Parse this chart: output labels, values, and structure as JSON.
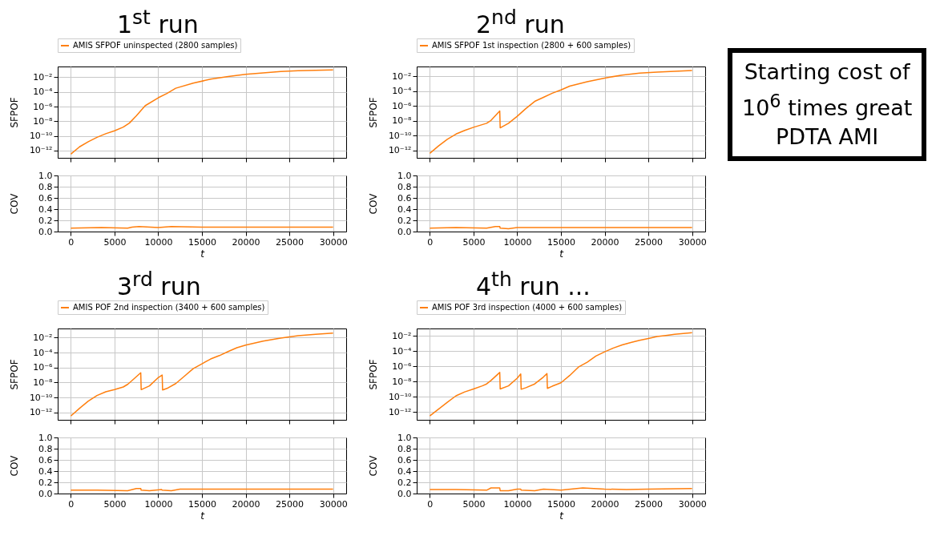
{
  "chart_data": [
    {
      "type": "line",
      "annotations": [
        "1$^{st}$ run"
      ],
      "ylabel": "SFPOF",
      "log": true,
      "grid": true,
      "legend": "top",
      "tick_labels": "y",
      "xlim": [
        -1500,
        31500
      ],
      "xticks": [
        0,
        5000,
        10000,
        15000,
        20000,
        25000,
        30000
      ],
      "ylim": [
        1e-13,
        0.3
      ],
      "yticks": [
        {
          "value": 1e-12,
          "label": "10⁻¹²"
        },
        {
          "value": 1e-10,
          "label": "10⁻¹⁰"
        },
        {
          "value": 1e-08,
          "label": "10⁻⁸"
        },
        {
          "value": 1e-06,
          "label": "10⁻⁶"
        },
        {
          "value": 0.0001,
          "label": "10⁻⁴"
        },
        {
          "value": 0.01,
          "label": "10⁻²"
        }
      ],
      "series": [
        {
          "name": "AMIS SFPOF uninspected (2800 samples)",
          "color": "#ff7f0e",
          "x": [
            0,
            1000,
            2000,
            3000,
            4000,
            5000,
            6000,
            6700,
            7500,
            8500,
            10000,
            11000,
            12000,
            14000,
            16000,
            18000,
            20000,
            22000,
            24000,
            26000,
            28000,
            30000
          ],
          "values": [
            3.2e-13,
            3.2e-12,
            1.6e-11,
            6.3e-11,
            2e-10,
            5e-10,
            1.6e-09,
            5.6e-09,
            5.6e-08,
            1.3e-06,
            1.6e-05,
            6.3e-05,
            0.00032,
            0.0016,
            0.0056,
            0.013,
            0.025,
            0.04,
            0.063,
            0.079,
            0.089,
            0.1
          ]
        }
      ]
    },
    {
      "type": "line",
      "ylabel": "COV",
      "xlabel": "t",
      "grid": true,
      "xlim": [
        -1500,
        31500
      ],
      "xticks": [
        0,
        5000,
        10000,
        15000,
        20000,
        25000,
        30000
      ],
      "ylim": [
        0,
        1
      ],
      "yticks": [
        {
          "value": 0,
          "label": "0.0"
        },
        0.2,
        0.4,
        0.6,
        0.8,
        {
          "value": 1,
          "label": "1.0"
        }
      ],
      "series": [
        {
          "color": "#ff7f0e",
          "x": [
            0,
            3500,
            6500,
            7000,
            7800,
            10000,
            11500,
            15000,
            20000,
            25000,
            30000
          ],
          "values": [
            0.06,
            0.07,
            0.06,
            0.08,
            0.09,
            0.07,
            0.09,
            0.08,
            0.08,
            0.08,
            0.08
          ]
        }
      ]
    },
    {
      "type": "line",
      "annotations": [
        "2$^{nd}$ run"
      ],
      "ylabel": "SFPOF",
      "log": true,
      "grid": true,
      "legend": "top",
      "tick_labels": "y",
      "xlim": [
        -1500,
        31500
      ],
      "xticks": [
        0,
        5000,
        10000,
        15000,
        20000,
        25000,
        30000
      ],
      "ylim": [
        1e-13,
        0.2
      ],
      "yticks": [
        {
          "value": 1e-12,
          "label": "10⁻¹²"
        },
        {
          "value": 1e-10,
          "label": "10⁻¹⁰"
        },
        {
          "value": 1e-08,
          "label": "10⁻⁸"
        },
        {
          "value": 1e-06,
          "label": "10⁻⁶"
        },
        {
          "value": 0.0001,
          "label": "10⁻⁴"
        },
        {
          "value": 0.01,
          "label": "10⁻²"
        }
      ],
      "series": [
        {
          "name": "AMIS SFPOF 1st inspection (2800 + 600 samples)",
          "color": "#ff7f0e",
          "x": [
            0,
            1000,
            2000,
            3000,
            4000,
            5000,
            6500,
            7000,
            8000,
            8050,
            9000,
            10000,
            11000,
            12000,
            13000,
            14000,
            15000,
            16000,
            18000,
            20000,
            22000,
            24000,
            26000,
            28000,
            30000
          ],
          "values": [
            4e-13,
            4e-12,
            3.2e-11,
            1.6e-10,
            5e-10,
            1.3e-09,
            4.5e-09,
            1.1e-08,
            2e-07,
            1.1e-09,
            4.5e-09,
            4e-08,
            4.5e-07,
            4e-06,
            1.4e-05,
            5e-05,
            0.00014,
            0.00045,
            0.0018,
            0.0056,
            0.014,
            0.025,
            0.035,
            0.045,
            0.056
          ]
        }
      ]
    },
    {
      "type": "line",
      "ylabel": "COV",
      "xlabel": "t",
      "grid": true,
      "xlim": [
        -1500,
        31500
      ],
      "xticks": [
        0,
        5000,
        10000,
        15000,
        20000,
        25000,
        30000
      ],
      "ylim": [
        0,
        1
      ],
      "yticks": [
        {
          "value": 0,
          "label": "0.0"
        },
        0.2,
        0.4,
        0.6,
        0.8,
        {
          "value": 1,
          "label": "1.0"
        }
      ],
      "series": [
        {
          "color": "#ff7f0e",
          "x": [
            0,
            3000,
            6500,
            7500,
            8000,
            8050,
            9000,
            10000,
            15000,
            20000,
            25000,
            30000
          ],
          "values": [
            0.06,
            0.07,
            0.06,
            0.09,
            0.09,
            0.06,
            0.05,
            0.07,
            0.07,
            0.07,
            0.07,
            0.07
          ]
        }
      ]
    },
    {
      "type": "line",
      "annotations": [
        "3$^{rd}$ run"
      ],
      "ylabel": "SFPOF",
      "log": true,
      "grid": true,
      "legend": "top",
      "tick_labels": "y",
      "xlim": [
        -1500,
        31500
      ],
      "xticks": [
        0,
        5000,
        10000,
        15000,
        20000,
        25000,
        30000
      ],
      "ylim": [
        1e-13,
        0.17
      ],
      "yticks": [
        {
          "value": 1e-12,
          "label": "10⁻¹²"
        },
        {
          "value": 1e-10,
          "label": "10⁻¹⁰"
        },
        {
          "value": 1e-08,
          "label": "10⁻⁸"
        },
        {
          "value": 1e-06,
          "label": "10⁻⁶"
        },
        {
          "value": 0.0001,
          "label": "10⁻⁴"
        },
        {
          "value": 0.01,
          "label": "10⁻²"
        }
      ],
      "series": [
        {
          "name": "AMIS POF 2nd inspection (3400 + 600 samples)",
          "color": "#ff7f0e",
          "x": [
            0,
            1000,
            2000,
            3000,
            4000,
            5000,
            6000,
            6500,
            7000,
            8000,
            8050,
            9000,
            10000,
            10450,
            10500,
            11000,
            12000,
            13000,
            14000,
            15000,
            16000,
            17000,
            18000,
            19000,
            20000,
            22000,
            24000,
            26000,
            28000,
            30000
          ],
          "values": [
            3.2e-13,
            3.5e-12,
            3.2e-11,
            1.8e-10,
            5.6e-10,
            1.1e-09,
            2.5e-09,
            5.6e-09,
            1.8e-08,
            2e-07,
            1.1e-09,
            3.5e-09,
            4.5e-08,
            1e-07,
            1e-09,
            1.6e-09,
            7.1e-09,
            7.1e-08,
            7.1e-07,
            3.2e-06,
            1.4e-05,
            4e-05,
            0.00014,
            0.00045,
            0.001,
            0.0035,
            0.0089,
            0.018,
            0.028,
            0.04
          ]
        }
      ]
    },
    {
      "type": "line",
      "ylabel": "COV",
      "xlabel": "t",
      "grid": true,
      "xlim": [
        -1500,
        31500
      ],
      "xticks": [
        0,
        5000,
        10000,
        15000,
        20000,
        25000,
        30000
      ],
      "ylim": [
        0,
        1
      ],
      "yticks": [
        {
          "value": 0,
          "label": "0.0"
        },
        0.2,
        0.4,
        0.6,
        0.8,
        {
          "value": 1,
          "label": "1.0"
        }
      ],
      "series": [
        {
          "color": "#ff7f0e",
          "x": [
            0,
            3000,
            6500,
            7500,
            8000,
            8050,
            9000,
            10400,
            10450,
            11500,
            12500,
            15000,
            20000,
            25000,
            30000
          ],
          "values": [
            0.06,
            0.06,
            0.05,
            0.09,
            0.09,
            0.06,
            0.05,
            0.07,
            0.06,
            0.05,
            0.08,
            0.08,
            0.08,
            0.08,
            0.08
          ]
        }
      ]
    },
    {
      "type": "line",
      "annotations": [
        "4$^{th}$ run ..."
      ],
      "ylabel": "SFPOF",
      "log": true,
      "grid": true,
      "legend": "top",
      "tick_labels": "y",
      "xlim": [
        -1500,
        31500
      ],
      "xticks": [
        0,
        5000,
        10000,
        15000,
        20000,
        25000,
        30000
      ],
      "ylim": [
        1e-13,
        0.09
      ],
      "yticks": [
        {
          "value": 1e-12,
          "label": "10⁻¹²"
        },
        {
          "value": 1e-10,
          "label": "10⁻¹⁰"
        },
        {
          "value": 1e-08,
          "label": "10⁻⁸"
        },
        {
          "value": 1e-06,
          "label": "10⁻⁶"
        },
        {
          "value": 0.0001,
          "label": "10⁻⁴"
        },
        {
          "value": 0.01,
          "label": "10⁻²"
        }
      ],
      "series": [
        {
          "name": "AMIS POF 3rd inspection (4000 + 600 samples)",
          "color": "#ff7f0e",
          "x": [
            0,
            1000,
            2000,
            3000,
            4000,
            5000,
            6000,
            6500,
            7000,
            8000,
            8050,
            9000,
            10000,
            10400,
            10450,
            11000,
            12000,
            13000,
            13400,
            13450,
            14000,
            15000,
            16000,
            17000,
            18000,
            19000,
            20000,
            21000,
            22000,
            23000,
            24000,
            25000,
            26000,
            27000,
            28000,
            29000,
            30000
          ],
          "values": [
            3.2e-13,
            2.5e-12,
            2e-11,
            1.4e-10,
            4.5e-10,
            1.1e-09,
            2.8e-09,
            5e-09,
            1.4e-08,
            1.6e-07,
            1.1e-09,
            2.8e-09,
            2.8e-08,
            1e-07,
            1e-09,
            1.6e-09,
            5e-09,
            4e-08,
            1.1e-07,
            1.3e-09,
            2.5e-09,
            7.1e-09,
            6.3e-08,
            7.9e-07,
            3.5e-06,
            2.2e-05,
            7.9e-05,
            0.00025,
            0.00063,
            0.0013,
            0.0025,
            0.0045,
            0.0079,
            0.011,
            0.016,
            0.02,
            0.025
          ]
        }
      ]
    },
    {
      "type": "line",
      "ylabel": "COV",
      "xlabel": "t",
      "grid": true,
      "xlim": [
        -1500,
        31500
      ],
      "xticks": [
        0,
        5000,
        10000,
        15000,
        20000,
        25000,
        30000
      ],
      "ylim": [
        0,
        1
      ],
      "yticks": [
        {
          "value": 0,
          "label": "0.0"
        },
        0.2,
        0.4,
        0.6,
        0.8,
        {
          "value": 1,
          "label": "1.0"
        }
      ],
      "series": [
        {
          "color": "#ff7f0e",
          "x": [
            0,
            3000,
            6500,
            7000,
            8000,
            8050,
            9000,
            10000,
            10400,
            10450,
            12000,
            13000,
            15000,
            17500,
            20000,
            22500,
            25000,
            30000
          ],
          "values": [
            0.07,
            0.07,
            0.06,
            0.1,
            0.1,
            0.05,
            0.05,
            0.08,
            0.08,
            0.06,
            0.05,
            0.08,
            0.06,
            0.1,
            0.08,
            0.07,
            0.08,
            0.09
          ]
        }
      ]
    },
    {
      "type": "other",
      "annotations": [
        "Starting cost of",
        "10$^{6}$ times great",
        "PDTA AMI"
      ]
    }
  ]
}
